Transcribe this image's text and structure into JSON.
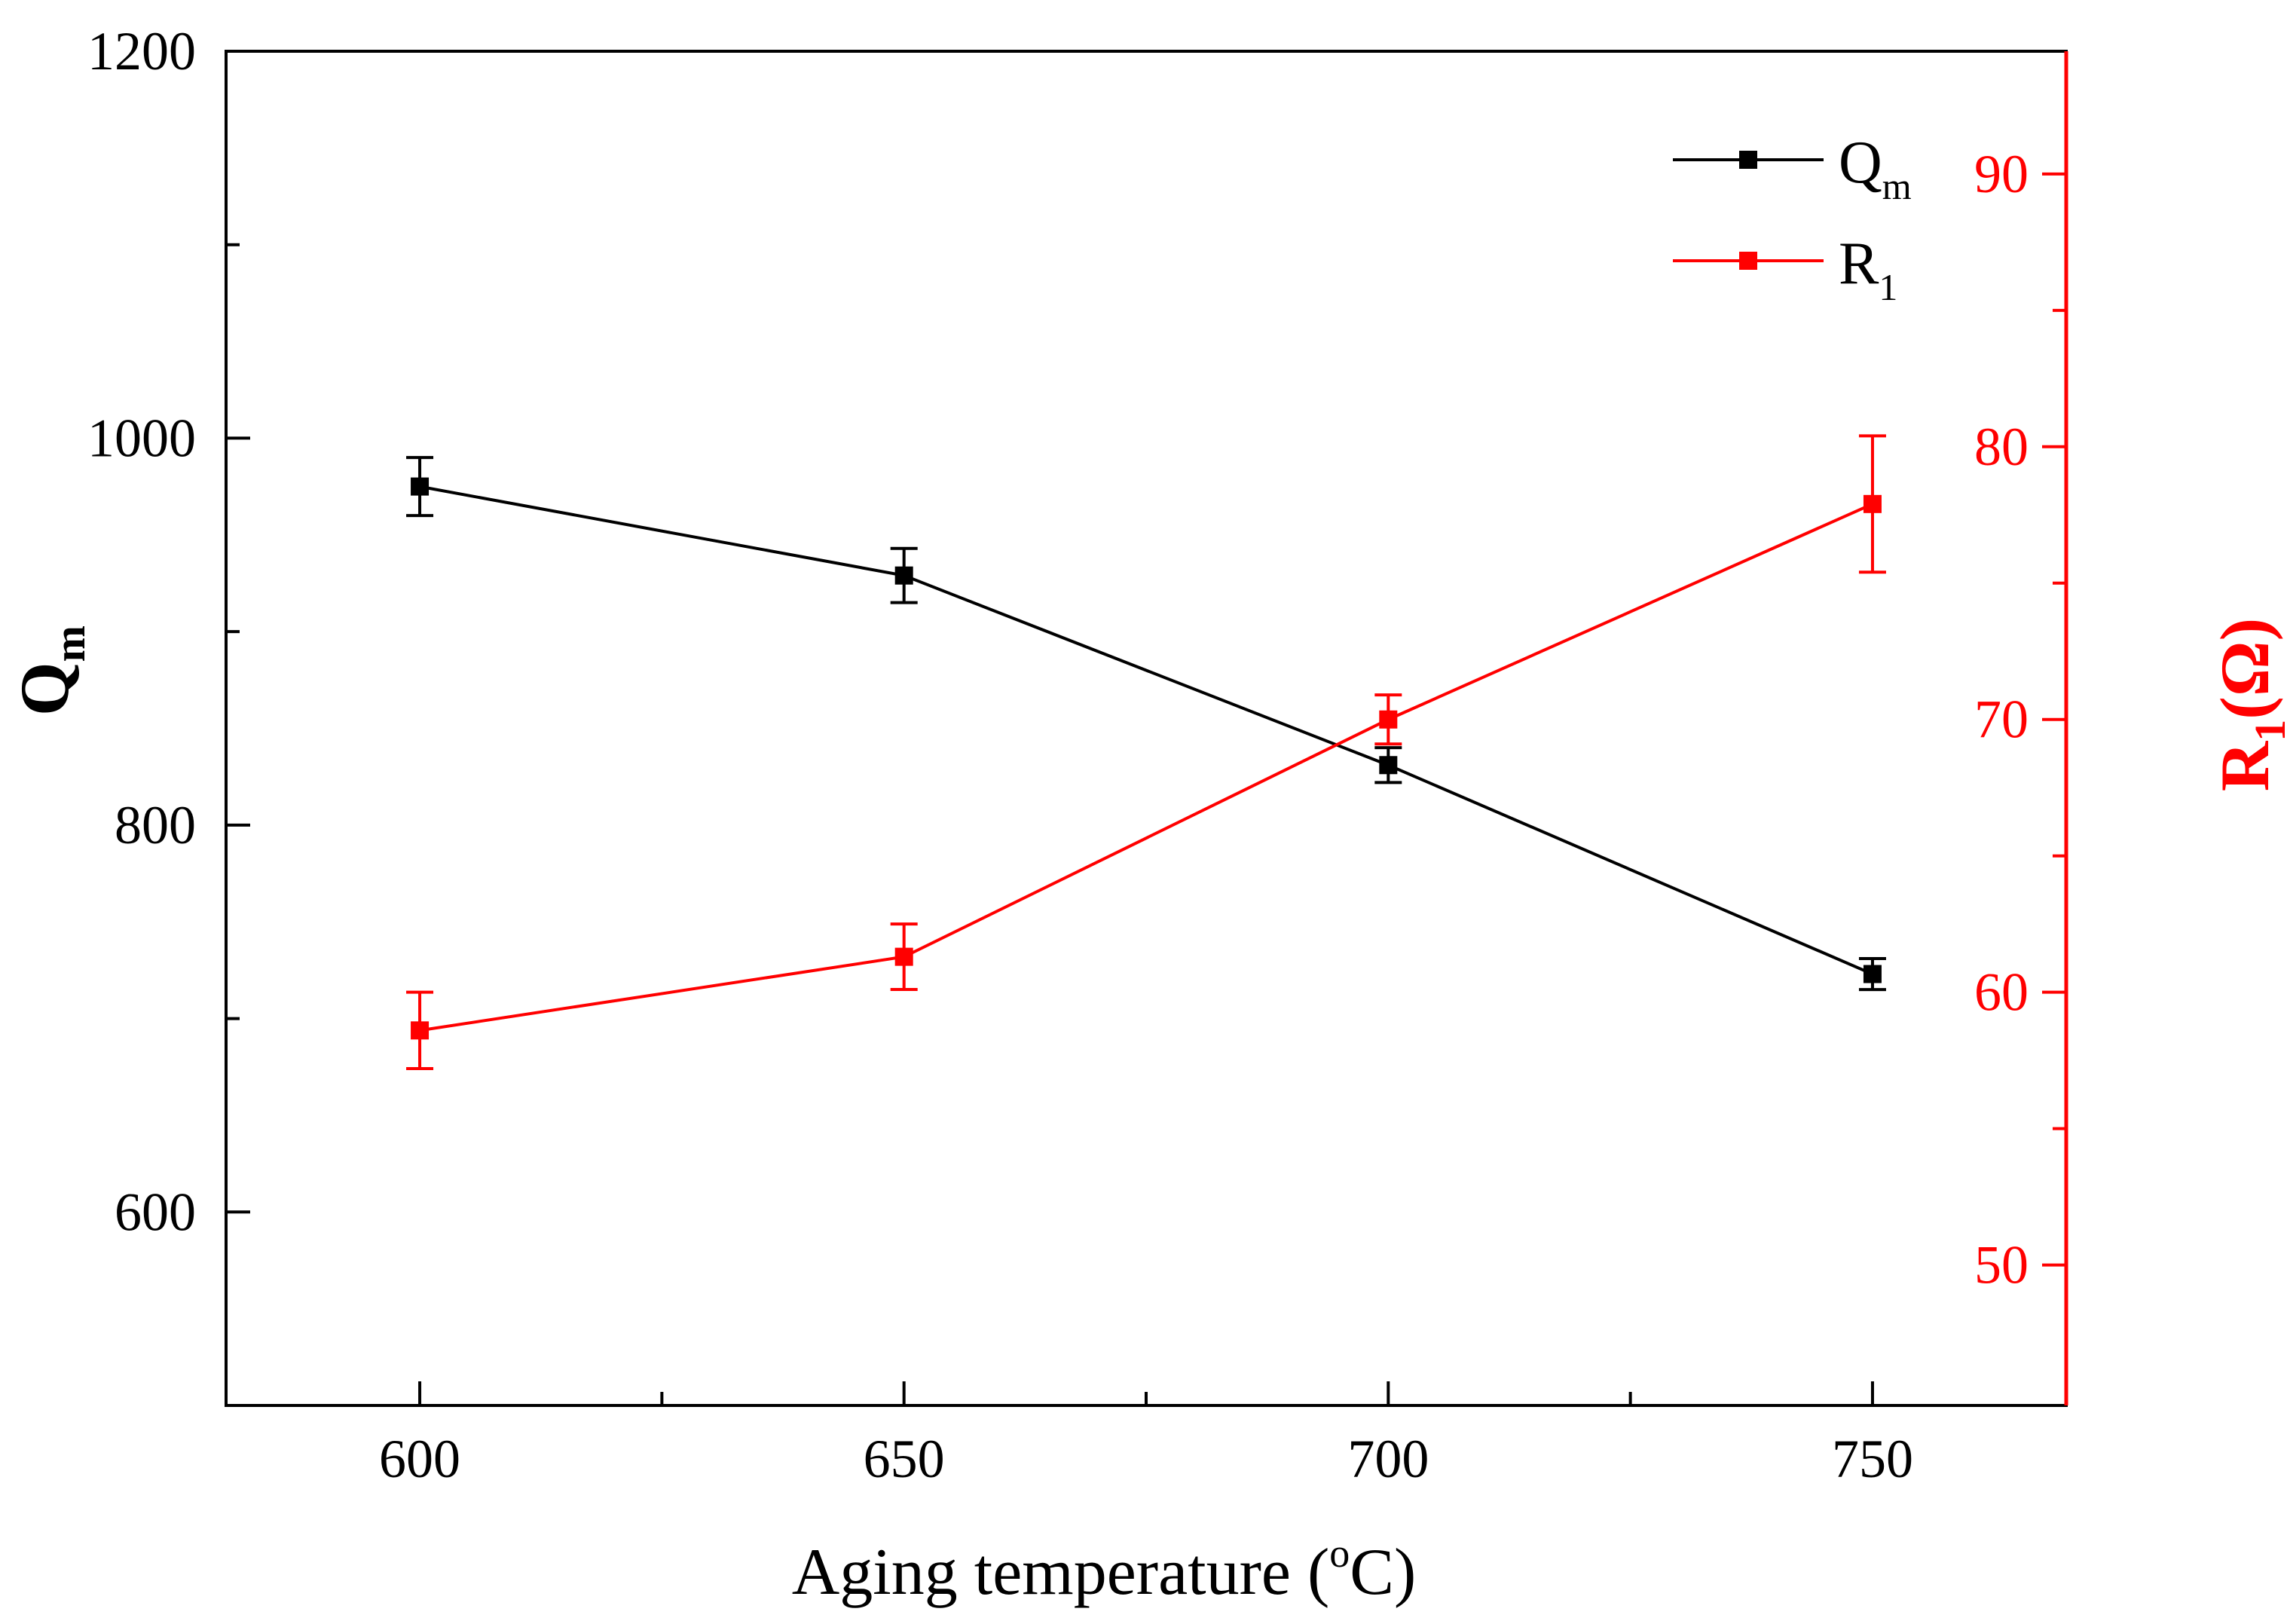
{
  "chart_data": {
    "type": "line",
    "title": "",
    "x": [
      600,
      650,
      700,
      750
    ],
    "xlabel": {
      "text": "Aging temperature (",
      "sup": "o",
      "suffix": "C)"
    },
    "xlim": [
      580,
      770
    ],
    "xticks": [
      600,
      650,
      700,
      750
    ],
    "xminor": [
      625,
      675,
      725
    ],
    "left_axis": {
      "label": "Q",
      "label_sub": "m",
      "ylim": [
        500,
        1200
      ],
      "ticks": [
        600,
        800,
        1000,
        1200
      ],
      "minor": [
        700,
        900,
        1100
      ],
      "color": "#000000"
    },
    "right_axis": {
      "label": "R",
      "label_sub": "1",
      "label_suffix": "(Ω)",
      "ylim": [
        44.85,
        94.5
      ],
      "ticks": [
        50,
        60,
        70,
        80,
        90
      ],
      "minor": [
        55,
        65,
        75,
        85
      ],
      "color": "#ff0000"
    },
    "series": [
      {
        "name": "Q",
        "name_sub": "m",
        "axis": "left",
        "color": "#000000",
        "values": [
          975,
          929,
          831,
          723
        ],
        "errors": [
          15,
          14,
          9,
          8
        ]
      },
      {
        "name": "R",
        "name_sub": "1",
        "axis": "right",
        "color": "#ff0000",
        "values": [
          58.6,
          61.3,
          70.0,
          77.9
        ],
        "errors": [
          1.4,
          1.2,
          0.9,
          2.5
        ]
      }
    ],
    "legend": "top-right"
  }
}
